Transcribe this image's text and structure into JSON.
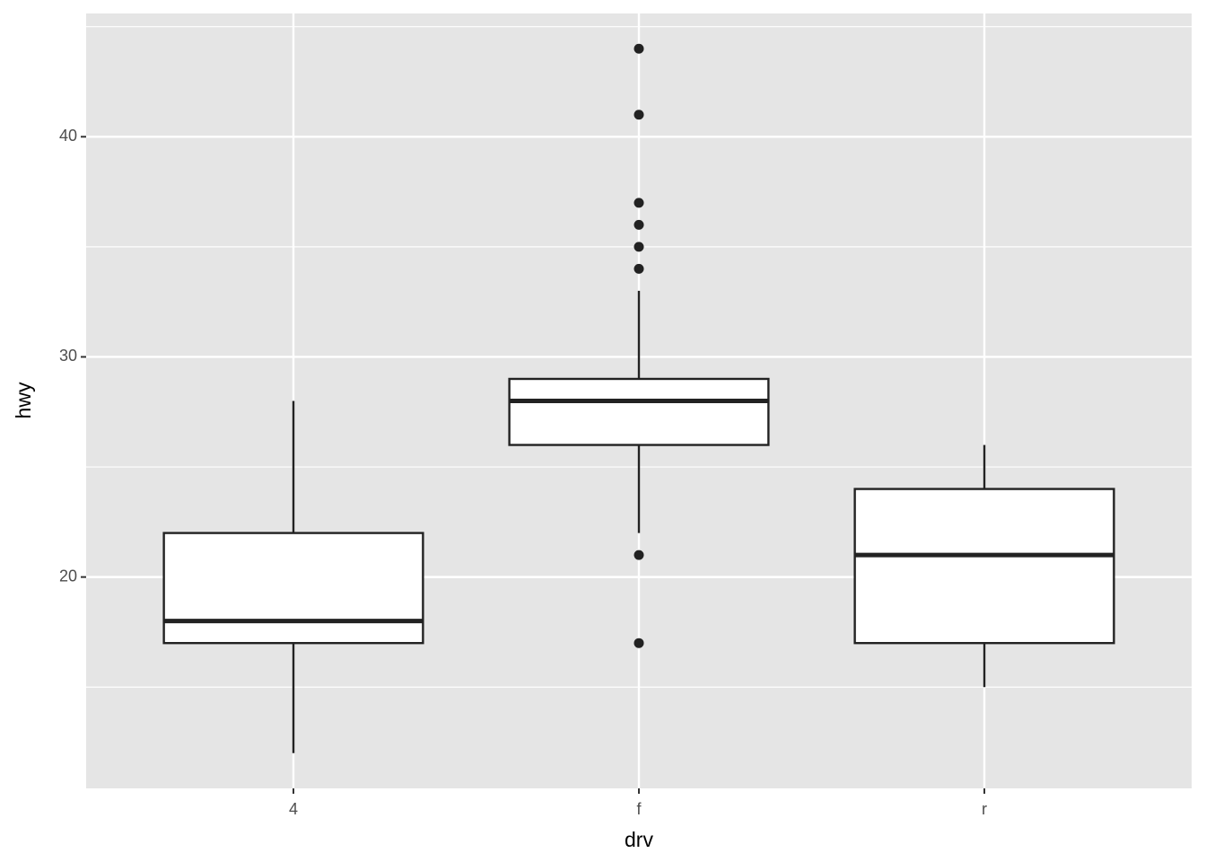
{
  "chart_data": {
    "type": "box",
    "x_label": "drv",
    "y_label": "hwy",
    "categories": [
      "4",
      "f",
      "r"
    ],
    "boxes": [
      {
        "min": 12,
        "q1": 17,
        "median": 18,
        "q3": 22,
        "max": 28,
        "outliers": []
      },
      {
        "min": 22,
        "q1": 26,
        "median": 28,
        "q3": 29,
        "max": 33,
        "outliers": [
          44,
          41,
          37,
          36,
          35,
          34,
          21,
          17
        ]
      },
      {
        "min": 15,
        "q1": 17,
        "median": 21,
        "q3": 24,
        "max": 26,
        "outliers": []
      }
    ],
    "ylim": [
      10.4,
      45.6
    ],
    "yticks": [
      20,
      30,
      40
    ],
    "minor_yticks": [
      15,
      25,
      35,
      45
    ],
    "grid": true,
    "panel_color": "#e5e5e5",
    "box_color": "#ffffff",
    "line_color": "#222222"
  }
}
